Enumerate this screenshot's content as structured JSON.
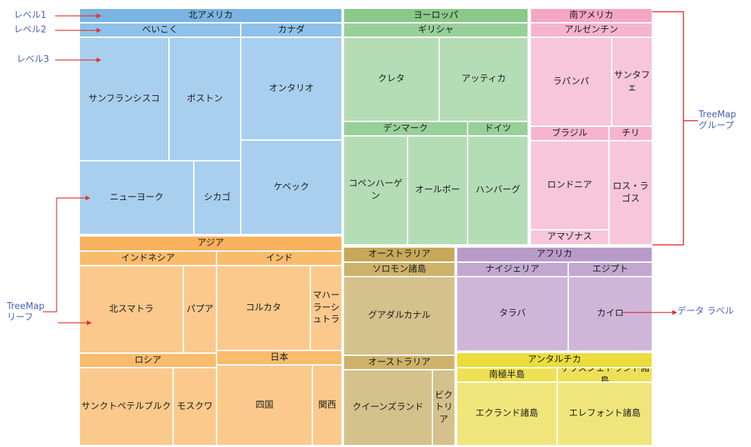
{
  "colors": {
    "na_hdr": "#7ab4e2",
    "na_sub": "#8fc2ea",
    "na_leaf": "#a9cfee",
    "eu_hdr": "#8ac98a",
    "eu_sub": "#98d09a",
    "eu_leaf": "#b4ddb6",
    "sa_hdr": "#f4a6c4",
    "sa_sub": "#f6b5cd",
    "sa_leaf": "#f7c6da",
    "as_hdr": "#f8b15d",
    "as_sub": "#f9bc6d",
    "as_leaf": "#fbc98c",
    "oc_hdr": "#c7a85a",
    "oc_sub": "#cfb26a",
    "oc_leaf": "#d4c18b",
    "af_hdr": "#b99bc9",
    "af_sub": "#c2a8d1",
    "af_leaf": "#cfb6d9",
    "an_hdr": "#eadd3c",
    "an_sub": "#eee055",
    "an_leaf": "#f0e57a",
    "arrow": "#e5312f",
    "bracket": "#e5312f",
    "annotation_text": "#4a5fc1"
  },
  "annotations": {
    "level1": "レベル1",
    "level2": "レベル2",
    "level3": "レベル3",
    "group": [
      "TreeMap",
      "グループ"
    ],
    "leaf": [
      "TreeMap",
      "リーフ"
    ],
    "data_label": "データ ラベル"
  },
  "regions": {
    "north_america": {
      "name": "北アメリカ",
      "usa": {
        "name": "べいこく",
        "sanfrancisco": "サンフランシスコ",
        "boston": "ボストン",
        "newyork": "ニューヨーク",
        "chicago": "シカゴ"
      },
      "canada": {
        "name": "カナダ",
        "ontario": "オンタリオ",
        "quebec": "ケベック"
      }
    },
    "europe": {
      "name": "ヨーロッパ",
      "greece": {
        "name": "ギリシャ",
        "crete": "クレタ",
        "attica": "アッティカ"
      },
      "denmark": {
        "name": "デンマーク",
        "copenhagen": "コペンハーゲン",
        "aalborg": "オールボー"
      },
      "germany": {
        "name": "ドイツ",
        "hamburg": "ハンバーグ"
      }
    },
    "south_america": {
      "name": "南アメリカ",
      "argentina": {
        "name": "アルゼンチン",
        "lapampa": "ラパンパ",
        "santafe": "サンタフェ"
      },
      "brazil": {
        "name": "ブラジル",
        "rondonia": "ロンドニア",
        "amazonas": "アマゾナス"
      },
      "chile": {
        "name": "チリ",
        "loslagos": "ロス・ラゴス"
      }
    },
    "asia": {
      "name": "アジア",
      "indonesia": {
        "name": "インドネシア",
        "northsumatra": "北スマトラ",
        "papua": "パプア"
      },
      "india": {
        "name": "インド",
        "kolkata": "コルカタ",
        "maharashtra": "マハーラーシュトラ"
      },
      "russia": {
        "name": "ロシア",
        "stpetersburg": "サンクトペテルブルク",
        "moscow": "モスクワ"
      },
      "japan": {
        "name": "日本",
        "shikoku": "四国",
        "kansai": "関西"
      }
    },
    "oceania": {
      "name": "オーストラリア",
      "solomon": {
        "name": "ソロモン諸島",
        "guadalcanal": "グアダルカナル"
      },
      "australia": {
        "name": "オーストラリア",
        "queensland": "クイーンズランド",
        "victoria": "ビクトリア"
      }
    },
    "africa": {
      "name": "アフリカ",
      "nigeria": {
        "name": "ナイジェリア",
        "taraba": "タラバ"
      },
      "egypt": {
        "name": "エジプト",
        "cairo": "カイロ"
      }
    },
    "antarctica": {
      "name": "アンタルチカ",
      "antarctic_peninsula": {
        "name": "南極半島",
        "ecland": "エクランド諸島"
      },
      "south_shetland": {
        "name": "サウスシェトランド諸島",
        "elephant": "エレフォント諸島"
      }
    }
  }
}
